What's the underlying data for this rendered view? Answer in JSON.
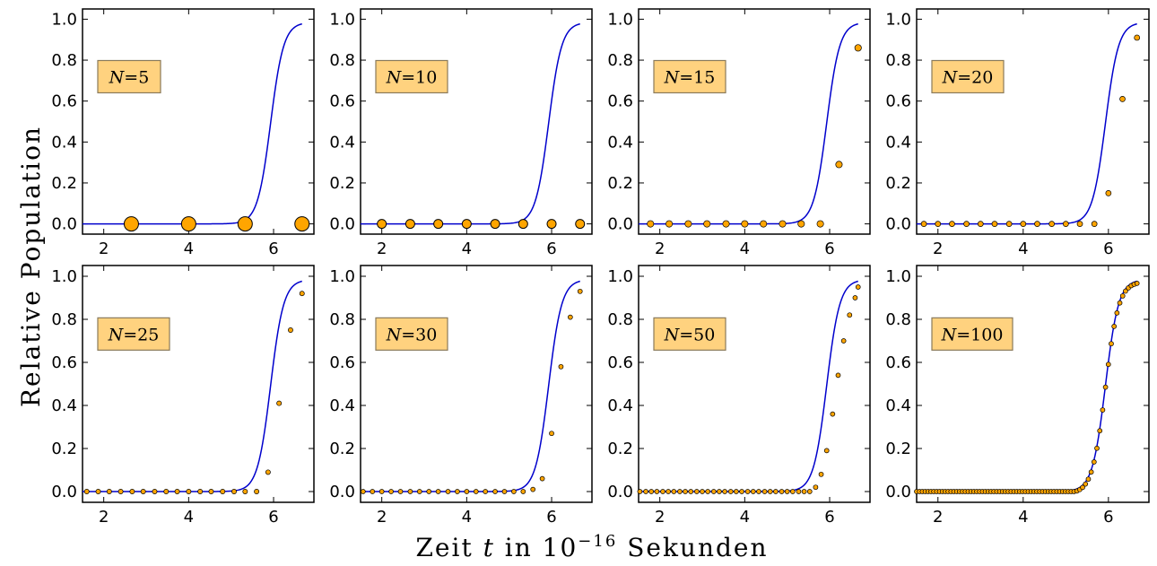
{
  "figure": {
    "ylabel": "Relative Population",
    "xlabel_prefix": "Zeit ",
    "xlabel_var": "t",
    "xlabel_mid": " in 10",
    "xlabel_exp": "−16",
    "xlabel_suffix": " Sekunden"
  },
  "colors": {
    "curve": "#0000cc",
    "marker_fill": "#ffa500",
    "marker_edge": "#000000",
    "box_fill": "#ffd27f",
    "box_edge": "#8a7a5a"
  },
  "chart_data": [
    {
      "type": "scatter",
      "label": "N=5",
      "N": 5,
      "x": [
        2.65,
        4.0,
        5.33,
        6.67
      ],
      "y": [
        0.0,
        0.0,
        0.0,
        0.0
      ],
      "xlim": [
        1.5,
        6.95
      ],
      "ylim": [
        -0.05,
        1.05
      ],
      "xticks": [
        "2",
        "4",
        "6"
      ],
      "yticks": [
        "0.0",
        "0.2",
        "0.4",
        "0.6",
        "0.8",
        "1.0"
      ]
    },
    {
      "type": "scatter",
      "label": "N=10",
      "N": 10,
      "x": [
        2.0,
        2.67,
        3.33,
        4.0,
        4.67,
        5.33,
        6.0,
        6.67
      ],
      "y": [
        0.0,
        0.0,
        0.0,
        0.0,
        0.0,
        0.0,
        0.0,
        0.0
      ],
      "xlim": [
        1.5,
        6.95
      ],
      "ylim": [
        -0.05,
        1.05
      ],
      "xticks": [
        "2",
        "4",
        "6"
      ],
      "yticks": [
        "0.0",
        "0.2",
        "0.4",
        "0.6",
        "0.8",
        "1.0"
      ]
    },
    {
      "type": "scatter",
      "label": "N=15",
      "N": 15,
      "x": [
        1.78,
        2.22,
        2.67,
        3.11,
        3.56,
        4.0,
        4.44,
        4.89,
        5.33,
        5.78,
        6.22,
        6.67
      ],
      "y": [
        0.0,
        0.0,
        0.0,
        0.0,
        0.0,
        0.0,
        0.0,
        0.0,
        0.0,
        0.0,
        0.29,
        0.86
      ],
      "xlim": [
        1.5,
        6.95
      ],
      "ylim": [
        -0.05,
        1.05
      ],
      "xticks": [
        "2",
        "4",
        "6"
      ],
      "yticks": [
        "0.0",
        "0.2",
        "0.4",
        "0.6",
        "0.8",
        "1.0"
      ]
    },
    {
      "type": "scatter",
      "label": "N=20",
      "N": 20,
      "x": [
        1.67,
        2.0,
        2.33,
        2.67,
        3.0,
        3.33,
        3.67,
        4.0,
        4.33,
        4.67,
        5.0,
        5.33,
        5.67,
        6.0,
        6.33,
        6.67
      ],
      "y": [
        0.0,
        0.0,
        0.0,
        0.0,
        0.0,
        0.0,
        0.0,
        0.0,
        0.0,
        0.0,
        0.0,
        0.0,
        0.0,
        0.15,
        0.61,
        0.91
      ],
      "xlim": [
        1.5,
        6.95
      ],
      "ylim": [
        -0.05,
        1.05
      ],
      "xticks": [
        "2",
        "4",
        "6"
      ],
      "yticks": [
        "0.0",
        "0.2",
        "0.4",
        "0.6",
        "0.8",
        "1.0"
      ]
    },
    {
      "type": "scatter",
      "label": "N=25",
      "N": 25,
      "x": [
        1.6,
        1.87,
        2.13,
        2.4,
        2.67,
        2.93,
        3.2,
        3.47,
        3.73,
        4.0,
        4.27,
        4.53,
        4.8,
        5.07,
        5.33,
        5.6,
        5.87,
        6.13,
        6.4,
        6.67
      ],
      "y": [
        0.0,
        0.0,
        0.0,
        0.0,
        0.0,
        0.0,
        0.0,
        0.0,
        0.0,
        0.0,
        0.0,
        0.0,
        0.0,
        0.0,
        0.0,
        0.0,
        0.09,
        0.41,
        0.75,
        0.92
      ],
      "xlim": [
        1.5,
        6.95
      ],
      "ylim": [
        -0.05,
        1.05
      ],
      "xticks": [
        "2",
        "4",
        "6"
      ],
      "yticks": [
        "0.0",
        "0.2",
        "0.4",
        "0.6",
        "0.8",
        "1.0"
      ]
    },
    {
      "type": "scatter",
      "label": "N=30",
      "N": 30,
      "x": [
        1.56,
        1.78,
        2.0,
        2.22,
        2.44,
        2.67,
        2.89,
        3.11,
        3.33,
        3.56,
        3.78,
        4.0,
        4.22,
        4.44,
        4.67,
        4.89,
        5.11,
        5.33,
        5.56,
        5.78,
        6.0,
        6.22,
        6.44,
        6.67
      ],
      "y": [
        0.0,
        0.0,
        0.0,
        0.0,
        0.0,
        0.0,
        0.0,
        0.0,
        0.0,
        0.0,
        0.0,
        0.0,
        0.0,
        0.0,
        0.0,
        0.0,
        0.0,
        0.0,
        0.01,
        0.06,
        0.27,
        0.58,
        0.81,
        0.93
      ],
      "xlim": [
        1.5,
        6.95
      ],
      "ylim": [
        -0.05,
        1.05
      ],
      "xticks": [
        "2",
        "4",
        "6"
      ],
      "yticks": [
        "0.0",
        "0.2",
        "0.4",
        "0.6",
        "0.8",
        "1.0"
      ]
    },
    {
      "type": "scatter",
      "label": "N=50",
      "N": 50,
      "x": [
        1.53,
        1.67,
        1.8,
        1.93,
        2.07,
        2.2,
        2.33,
        2.47,
        2.6,
        2.73,
        2.87,
        3.0,
        3.13,
        3.27,
        3.4,
        3.53,
        3.67,
        3.8,
        3.93,
        4.07,
        4.2,
        4.33,
        4.47,
        4.6,
        4.73,
        4.87,
        5.0,
        5.13,
        5.27,
        5.4,
        5.53,
        5.67,
        5.8,
        5.93,
        6.07,
        6.2,
        6.33,
        6.47,
        6.6
      ],
      "y": [
        0,
        0,
        0,
        0,
        0,
        0,
        0,
        0,
        0,
        0,
        0,
        0,
        0,
        0,
        0,
        0,
        0,
        0,
        0,
        0,
        0,
        0,
        0,
        0,
        0,
        0,
        0,
        0,
        0,
        0,
        0.0,
        0.02,
        0.08,
        0.19,
        0.36,
        0.54,
        0.7,
        0.82,
        0.9
      ],
      "x_last": 6.67,
      "y_last": 0.95,
      "xlim": [
        1.5,
        6.95
      ],
      "ylim": [
        -0.05,
        1.05
      ],
      "xticks": [
        "2",
        "4",
        "6"
      ],
      "yticks": [
        "0.0",
        "0.2",
        "0.4",
        "0.6",
        "0.8",
        "1.0"
      ]
    },
    {
      "type": "scatter",
      "label": "N=100",
      "N": 100,
      "x_start": 1.5,
      "x_end": 6.67,
      "count": 78,
      "curve_sampled": true,
      "xlim": [
        1.5,
        6.95
      ],
      "ylim": [
        -0.05,
        1.05
      ],
      "xticks": [
        "2",
        "4",
        "6"
      ],
      "yticks": [
        "0.0",
        "0.2",
        "0.4",
        "0.6",
        "0.8",
        "1.0"
      ]
    }
  ],
  "curve": {
    "type": "line",
    "label": "exact",
    "x_start": 1.5,
    "x_end": 6.67,
    "midpoint": 5.93,
    "steepness": 6.5,
    "plateau": 0.985
  }
}
